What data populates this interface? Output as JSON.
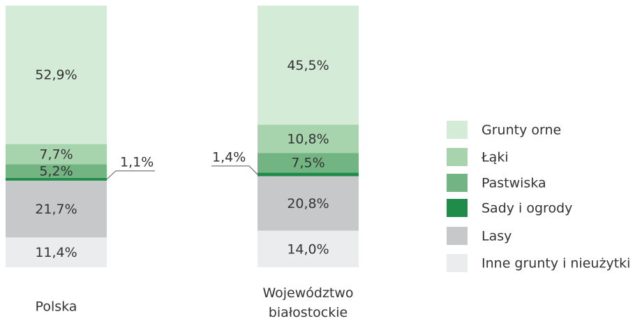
{
  "chart_data": {
    "type": "stacked-bar",
    "categories": [
      "Polska",
      "Województwo białostockie"
    ],
    "ylim": [
      0,
      100
    ],
    "series": [
      {
        "name": "Grunty orne",
        "color": "#d4ecd7",
        "values": [
          52.9,
          45.5
        ],
        "value_labels": [
          "52,9%",
          "45,5%"
        ]
      },
      {
        "name": "Łąki",
        "color": "#a8d4ad",
        "values": [
          7.7,
          10.8
        ],
        "value_labels": [
          "7,7%",
          "10,8%"
        ]
      },
      {
        "name": "Pastwiska",
        "color": "#72b583",
        "values": [
          5.2,
          7.5
        ],
        "value_labels": [
          "5,2%",
          "7,5%"
        ]
      },
      {
        "name": "Sady i ogrody",
        "color": "#1f8c4a",
        "values": [
          1.1,
          1.4
        ],
        "value_labels": [
          "1,1%",
          "1,4%"
        ]
      },
      {
        "name": "Lasy",
        "color": "#c7c8ca",
        "values": [
          21.7,
          20.8
        ],
        "value_labels": [
          "21,7%",
          "20,8%"
        ]
      },
      {
        "name": "Inne grunty i nieużytki",
        "color": "#ebecee",
        "values": [
          11.4,
          14.0
        ],
        "value_labels": [
          "11,4%",
          "14,0%"
        ]
      }
    ]
  }
}
